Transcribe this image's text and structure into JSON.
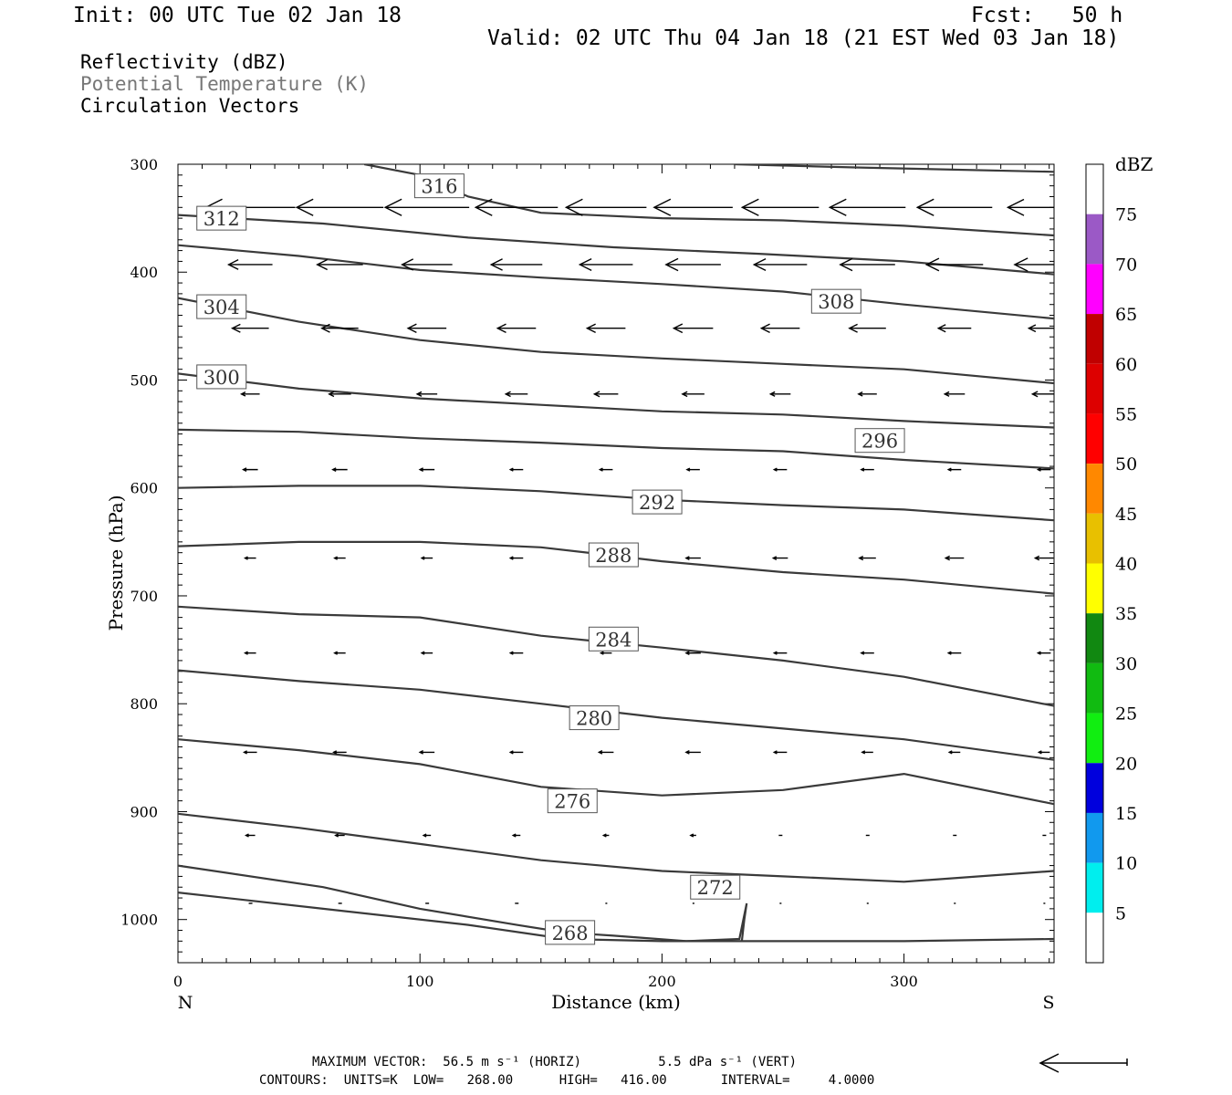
{
  "header": {
    "init": "Init: 00 UTC Tue 02 Jan 18",
    "fcst": "Fcst:   50 h",
    "valid": "Valid: 02 UTC Thu 04 Jan 18 (21 EST Wed 03 Jan 18)",
    "fields": [
      "Reflectivity (dBZ)",
      "Potential Temperature (K)",
      "Circulation Vectors"
    ]
  },
  "footer": {
    "vector_line": "MAXIMUM VECTOR:  56.5 m s⁻¹ (HORIZ)          5.5 dPa s⁻¹ (VERT)",
    "contour_line": "CONTOURS:  UNITS=K  LOW=   268.00      HIGH=   416.00       INTERVAL=     4.0000"
  },
  "chart_data": {
    "type": "line",
    "xlabel": "Distance (km)",
    "ylabel": "Pressure (hPa)",
    "xlim": [
      0,
      362
    ],
    "ylim": [
      300,
      1040
    ],
    "x_ticks": [
      0,
      100,
      200,
      300
    ],
    "y_ticks": [
      300,
      400,
      500,
      600,
      700,
      800,
      900,
      1000
    ],
    "x_end_labels": {
      "left": "N",
      "right": "S"
    },
    "colors": {
      "contour": "#3a3a3a",
      "vector": "#000000"
    },
    "series": [
      {
        "name": "268",
        "label_at": [
          162,
          1012
        ],
        "x": [
          0,
          60,
          120,
          160,
          200,
          250,
          300,
          362
        ],
        "y": [
          975,
          990,
          1005,
          1018,
          1020,
          1020,
          1020,
          1018
        ]
      },
      {
        "name": "272",
        "label_at": [
          222,
          970
        ],
        "x": [
          0,
          60,
          100,
          140,
          160,
          180,
          210,
          232,
          235,
          234,
          233
        ],
        "y": [
          950,
          970,
          990,
          1005,
          1012,
          1015,
          1020,
          1018,
          985,
          1000,
          1020
        ]
      },
      {
        "name": "276",
        "label_at": [
          163,
          890
        ],
        "x": [
          0,
          50,
          100,
          150,
          200,
          250,
          300,
          362
        ],
        "y": [
          902,
          915,
          930,
          945,
          955,
          960,
          965,
          955
        ]
      },
      {
        "name": "280",
        "label_at": [
          172,
          813
        ],
        "x": [
          0,
          50,
          100,
          150,
          200,
          250,
          300,
          362
        ],
        "y": [
          833,
          843,
          856,
          877,
          885,
          880,
          865,
          893
        ]
      },
      {
        "name": "284",
        "label_at": [
          180,
          740
        ],
        "x": [
          0,
          50,
          100,
          150,
          200,
          250,
          300,
          362
        ],
        "y": [
          769,
          779,
          787,
          800,
          813,
          823,
          833,
          852
        ]
      },
      {
        "name": "288",
        "label_at": [
          180,
          662
        ],
        "x": [
          0,
          50,
          100,
          150,
          200,
          250,
          300,
          362
        ],
        "y": [
          710,
          717,
          720,
          737,
          748,
          760,
          775,
          802
        ]
      },
      {
        "name": "292",
        "label_at": [
          198,
          613
        ],
        "x": [
          0,
          50,
          100,
          150,
          200,
          250,
          300,
          362
        ],
        "y": [
          654,
          650,
          650,
          655,
          668,
          678,
          685,
          698
        ]
      },
      {
        "name": "296",
        "label_at": [
          290,
          556
        ],
        "x": [
          0,
          50,
          100,
          150,
          200,
          250,
          300,
          362
        ],
        "y": [
          600,
          598,
          598,
          603,
          611,
          616,
          620,
          630
        ]
      },
      {
        "name": "300",
        "label_at": [
          18,
          497
        ],
        "x": [
          0,
          50,
          100,
          150,
          200,
          250,
          300,
          362
        ],
        "y": [
          546,
          548,
          554,
          558,
          563,
          566,
          574,
          582
        ]
      },
      {
        "name": "304",
        "label_at": [
          18,
          432
        ],
        "x": [
          0,
          50,
          100,
          150,
          200,
          250,
          300,
          362
        ],
        "y": [
          494,
          508,
          517,
          523,
          529,
          532,
          538,
          544
        ]
      },
      {
        "name": "308",
        "label_at": [
          272,
          427
        ],
        "x": [
          0,
          50,
          100,
          150,
          200,
          250,
          300,
          362
        ],
        "y": [
          424,
          446,
          463,
          474,
          480,
          485,
          490,
          503
        ]
      },
      {
        "name": "312",
        "label_at": [
          18,
          350
        ],
        "x": [
          0,
          50,
          100,
          150,
          200,
          250,
          300,
          362
        ],
        "y": [
          375,
          385,
          398,
          405,
          411,
          418,
          430,
          443
        ]
      },
      {
        "name": "316",
        "label_at": [
          108,
          320
        ],
        "x": [
          0,
          60,
          120,
          180,
          240,
          300,
          362
        ],
        "y": [
          347,
          355,
          368,
          377,
          383,
          390,
          402
        ]
      },
      {
        "name": "",
        "x": [
          77,
          100,
          120,
          150,
          200,
          250,
          300,
          362
        ],
        "y": [
          300,
          310,
          330,
          345,
          350,
          352,
          357,
          366
        ]
      },
      {
        "name": "",
        "x": [
          230,
          280,
          362
        ],
        "y": [
          300,
          303,
          307
        ]
      }
    ],
    "vectors": {
      "x": [
        30,
        67,
        103,
        140,
        177,
        213,
        249,
        285,
        321,
        358
      ],
      "levels": [
        340,
        393,
        452,
        513,
        583,
        665,
        753,
        845,
        922,
        985
      ],
      "lengths": [
        [
          98,
          95,
          92,
          90,
          88,
          86,
          84,
          83,
          82,
          80
        ],
        [
          48,
          50,
          55,
          56,
          58,
          60,
          58,
          60,
          62,
          65
        ],
        [
          40,
          40,
          42,
          42,
          42,
          43,
          42,
          40,
          36,
          34
        ],
        [
          20,
          24,
          22,
          24,
          26,
          24,
          22,
          20,
          22,
          26
        ],
        [
          16,
          16,
          16,
          14,
          14,
          14,
          14,
          14,
          14,
          14
        ],
        [
          12,
          12,
          12,
          14,
          14,
          16,
          16,
          18,
          20,
          20
        ],
        [
          12,
          12,
          12,
          14,
          12,
          16,
          14,
          14,
          14,
          14
        ],
        [
          14,
          14,
          16,
          14,
          16,
          16,
          14,
          12,
          12,
          12
        ],
        [
          10,
          10,
          8,
          8,
          6,
          6,
          4,
          4,
          4,
          4
        ],
        [
          4,
          4,
          4,
          4,
          2,
          2,
          2,
          2,
          2,
          2
        ]
      ]
    },
    "colorbar": {
      "unit": "dBZ",
      "labels": [
        "75",
        "70",
        "65",
        "60",
        "55",
        "50",
        "45",
        "40",
        "35",
        "30",
        "25",
        "20",
        "15",
        "10",
        "5"
      ],
      "colors": [
        "#ffffff",
        "#9b59c6",
        "#ff00ff",
        "#c00000",
        "#dd0000",
        "#ff0000",
        "#ff8800",
        "#e8c000",
        "#ffff00",
        "#118811",
        "#11bb11",
        "#11ee11",
        "#0000dd",
        "#1199ee",
        "#00eeee",
        "#ffffff"
      ]
    }
  }
}
